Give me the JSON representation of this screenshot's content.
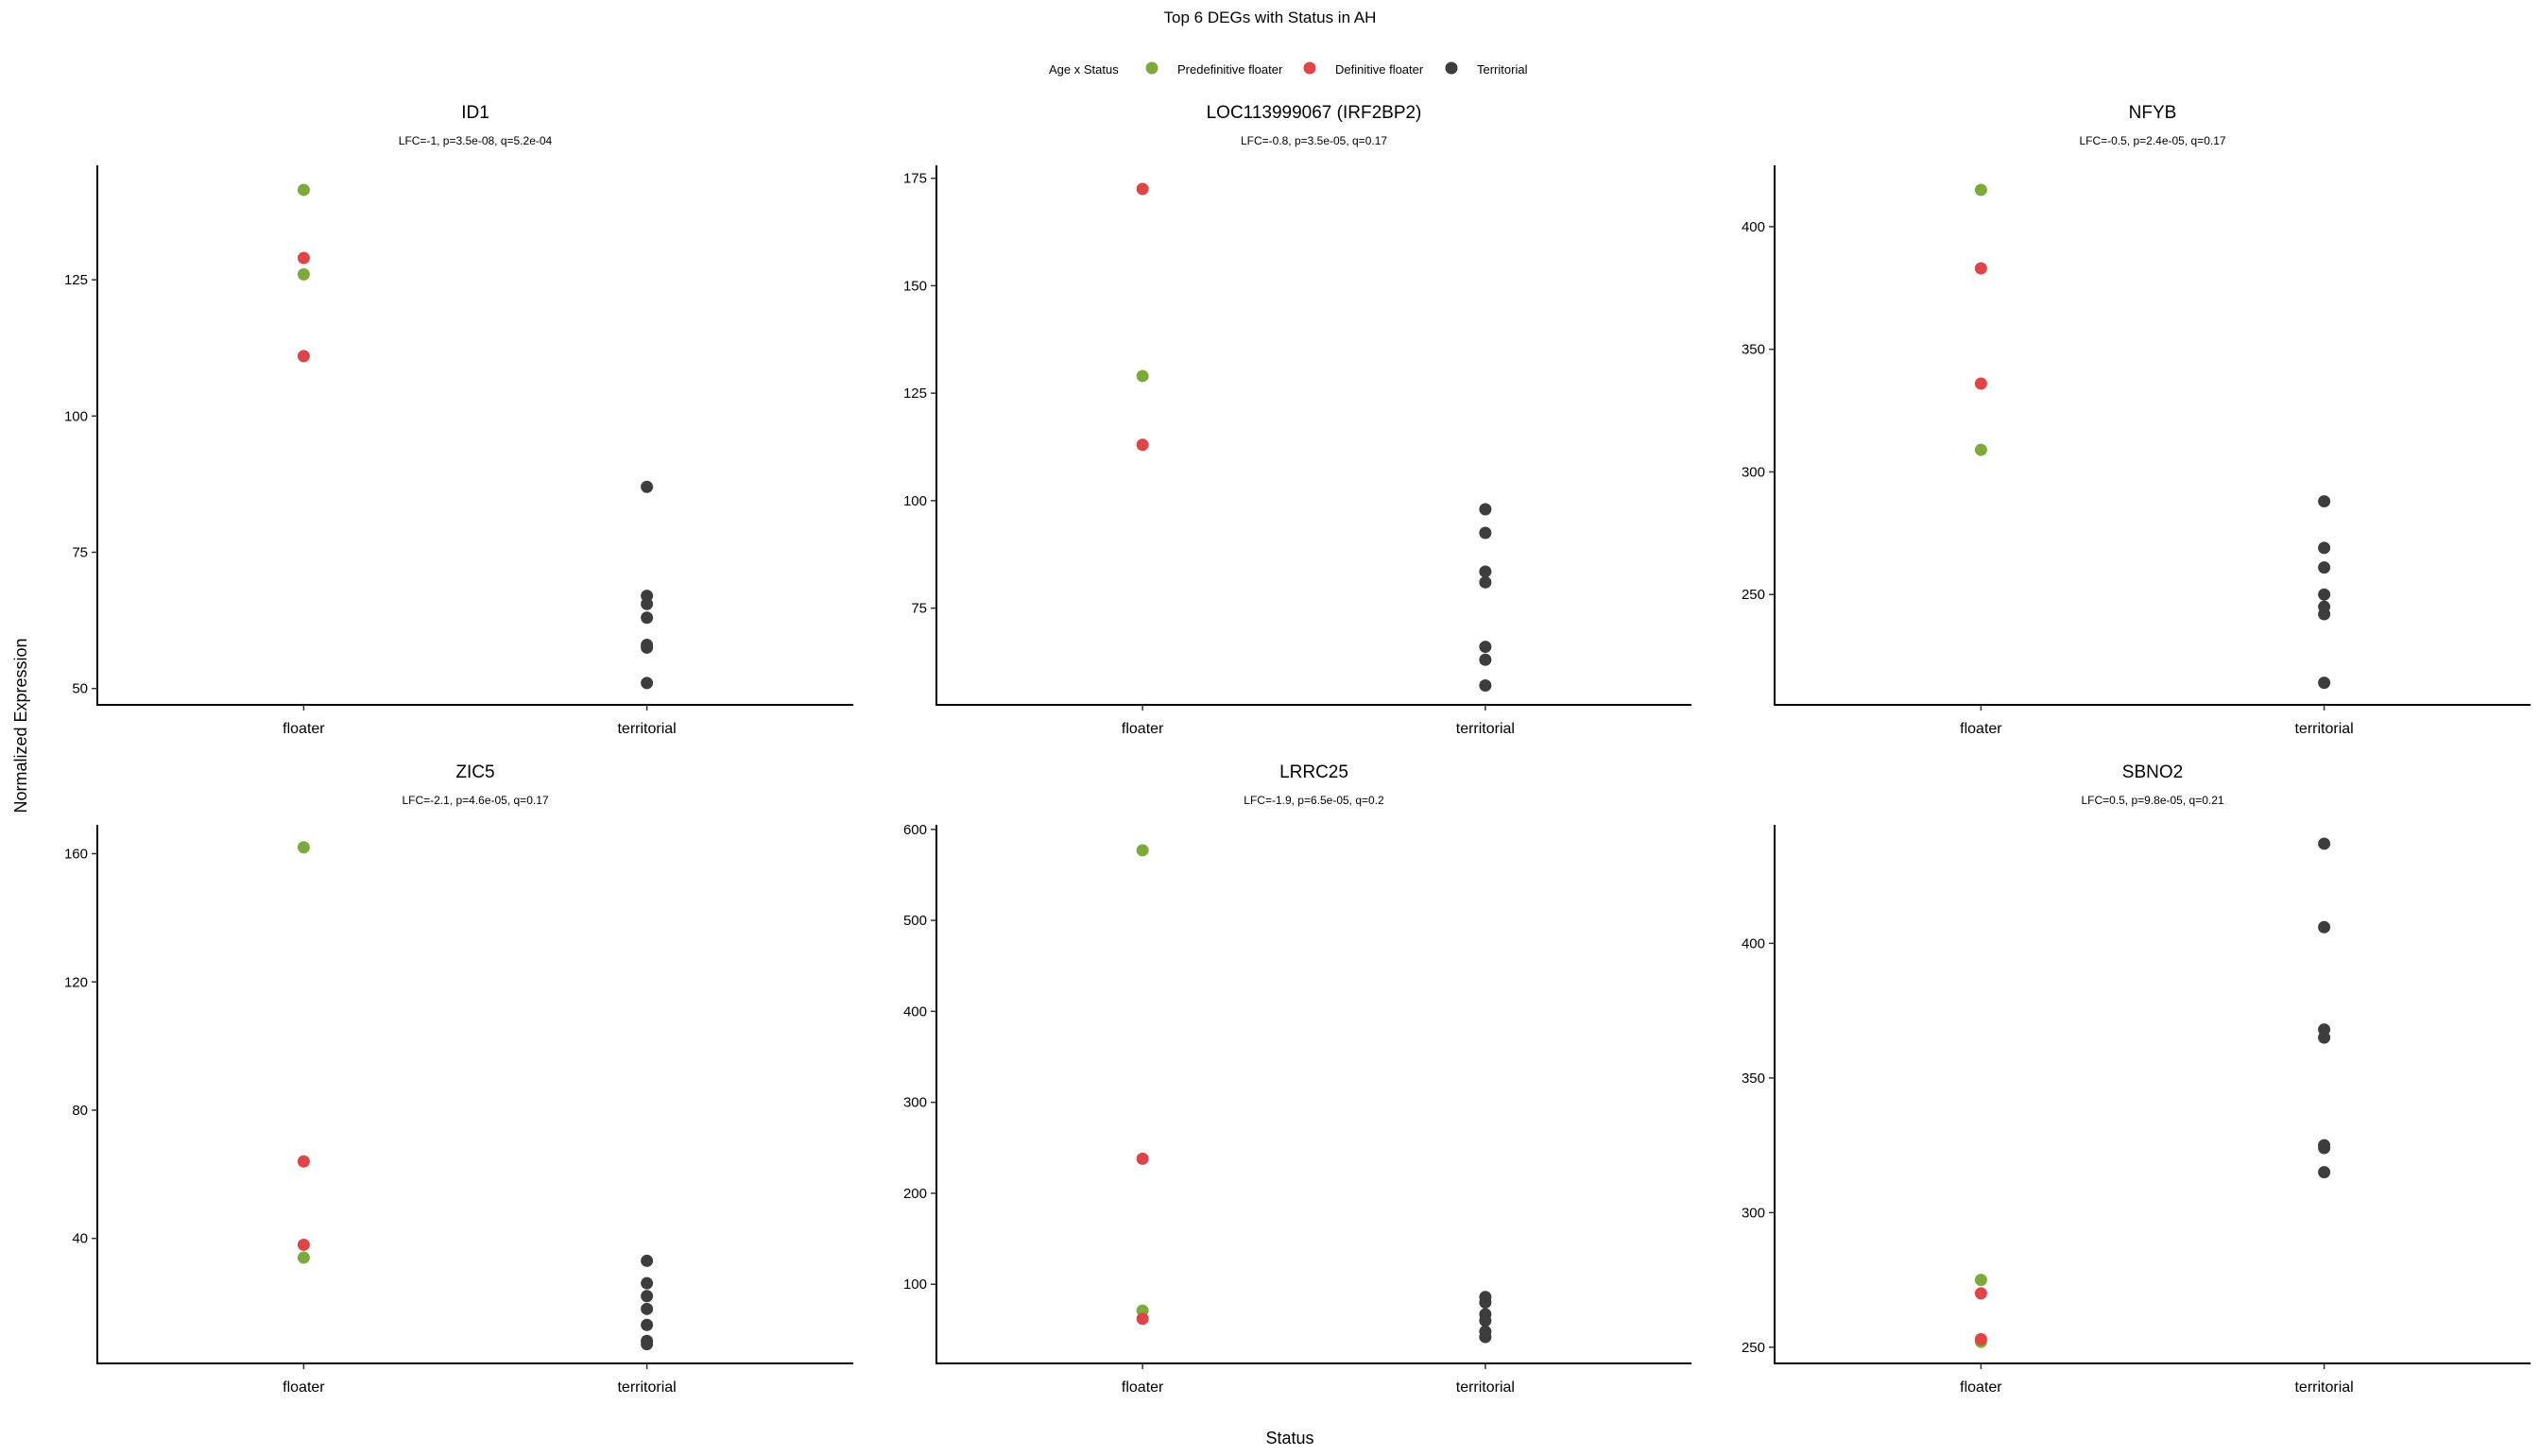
{
  "chart_data": {
    "type": "scatter",
    "title": "Top 6 DEGs with Status in AH",
    "xlabel": "Status",
    "ylabel": "Normalized Expression",
    "categories": [
      "floater",
      "territorial"
    ],
    "legend": {
      "title": "Age x Status",
      "placement": "top",
      "entries": [
        {
          "label": "Predefinitive floater",
          "color": "#7cab3c"
        },
        {
          "label": "Definitive floater",
          "color": "#e04446"
        },
        {
          "label": "Territorial",
          "color": "#3d3d3d"
        }
      ]
    },
    "grid": false,
    "panels": [
      {
        "title": "ID1",
        "subtitle": "LFC=-1, p=3.5e-08, q=5.2e-04",
        "ylim": [
          47,
          146
        ],
        "yticks": [
          50,
          75,
          100,
          125
        ],
        "points": [
          {
            "x": "floater",
            "group": "Predefinitive floater",
            "y": 141.5
          },
          {
            "x": "floater",
            "group": "Predefinitive floater",
            "y": 126
          },
          {
            "x": "floater",
            "group": "Definitive floater",
            "y": 129
          },
          {
            "x": "floater",
            "group": "Definitive floater",
            "y": 111
          },
          {
            "x": "territorial",
            "group": "Territorial",
            "y": 87
          },
          {
            "x": "territorial",
            "group": "Territorial",
            "y": 67
          },
          {
            "x": "territorial",
            "group": "Territorial",
            "y": 65.5
          },
          {
            "x": "territorial",
            "group": "Territorial",
            "y": 63
          },
          {
            "x": "territorial",
            "group": "Territorial",
            "y": 58
          },
          {
            "x": "territorial",
            "group": "Territorial",
            "y": 57.5
          },
          {
            "x": "territorial",
            "group": "Territorial",
            "y": 51
          }
        ]
      },
      {
        "title": "LOC113999067 (IRF2BP2)",
        "subtitle": "LFC=-0.8, p=3.5e-05, q=0.17",
        "ylim": [
          52.5,
          178
        ],
        "yticks": [
          75,
          100,
          125,
          150,
          175
        ],
        "points": [
          {
            "x": "floater",
            "group": "Predefinitive floater",
            "y": 129
          },
          {
            "x": "floater",
            "group": "Definitive floater",
            "y": 172.5
          },
          {
            "x": "floater",
            "group": "Definitive floater",
            "y": 113
          },
          {
            "x": "territorial",
            "group": "Territorial",
            "y": 98
          },
          {
            "x": "territorial",
            "group": "Territorial",
            "y": 92.5
          },
          {
            "x": "territorial",
            "group": "Territorial",
            "y": 83.5
          },
          {
            "x": "territorial",
            "group": "Territorial",
            "y": 81
          },
          {
            "x": "territorial",
            "group": "Territorial",
            "y": 66
          },
          {
            "x": "territorial",
            "group": "Territorial",
            "y": 63
          },
          {
            "x": "territorial",
            "group": "Territorial",
            "y": 57
          }
        ]
      },
      {
        "title": "NFYB",
        "subtitle": "LFC=-0.5, p=2.4e-05, q=0.17",
        "ylim": [
          205,
          425
        ],
        "yticks": [
          250,
          300,
          350,
          400
        ],
        "points": [
          {
            "x": "floater",
            "group": "Predefinitive floater",
            "y": 415
          },
          {
            "x": "floater",
            "group": "Predefinitive floater",
            "y": 309
          },
          {
            "x": "floater",
            "group": "Definitive floater",
            "y": 383
          },
          {
            "x": "floater",
            "group": "Definitive floater",
            "y": 336
          },
          {
            "x": "territorial",
            "group": "Territorial",
            "y": 288
          },
          {
            "x": "territorial",
            "group": "Territorial",
            "y": 269
          },
          {
            "x": "territorial",
            "group": "Territorial",
            "y": 261
          },
          {
            "x": "territorial",
            "group": "Territorial",
            "y": 250
          },
          {
            "x": "territorial",
            "group": "Territorial",
            "y": 245
          },
          {
            "x": "territorial",
            "group": "Territorial",
            "y": 242
          },
          {
            "x": "territorial",
            "group": "Territorial",
            "y": 214
          }
        ]
      },
      {
        "title": "ZIC5",
        "subtitle": "LFC=-2.1, p=4.6e-05, q=0.17",
        "ylim": [
          1,
          169
        ],
        "yticks": [
          40,
          80,
          120,
          160
        ],
        "points": [
          {
            "x": "floater",
            "group": "Predefinitive floater",
            "y": 162
          },
          {
            "x": "floater",
            "group": "Predefinitive floater",
            "y": 34
          },
          {
            "x": "floater",
            "group": "Definitive floater",
            "y": 64
          },
          {
            "x": "floater",
            "group": "Definitive floater",
            "y": 38
          },
          {
            "x": "territorial",
            "group": "Territorial",
            "y": 33
          },
          {
            "x": "territorial",
            "group": "Territorial",
            "y": 26
          },
          {
            "x": "territorial",
            "group": "Territorial",
            "y": 22
          },
          {
            "x": "territorial",
            "group": "Territorial",
            "y": 18
          },
          {
            "x": "territorial",
            "group": "Territorial",
            "y": 13
          },
          {
            "x": "territorial",
            "group": "Territorial",
            "y": 8
          },
          {
            "x": "territorial",
            "group": "Territorial",
            "y": 7
          }
        ]
      },
      {
        "title": "LRRC25",
        "subtitle": "LFC=-1.9, p=6.5e-05, q=0.2",
        "ylim": [
          13,
          605
        ],
        "yticks": [
          100,
          200,
          300,
          400,
          500,
          600
        ],
        "points": [
          {
            "x": "floater",
            "group": "Predefinitive floater",
            "y": 577
          },
          {
            "x": "floater",
            "group": "Predefinitive floater",
            "y": 71
          },
          {
            "x": "floater",
            "group": "Definitive floater",
            "y": 238
          },
          {
            "x": "floater",
            "group": "Definitive floater",
            "y": 62
          },
          {
            "x": "territorial",
            "group": "Territorial",
            "y": 86
          },
          {
            "x": "territorial",
            "group": "Territorial",
            "y": 80
          },
          {
            "x": "territorial",
            "group": "Territorial",
            "y": 67
          },
          {
            "x": "territorial",
            "group": "Territorial",
            "y": 60
          },
          {
            "x": "territorial",
            "group": "Territorial",
            "y": 48
          },
          {
            "x": "territorial",
            "group": "Territorial",
            "y": 42
          }
        ]
      },
      {
        "title": "SBNO2",
        "subtitle": "LFC=0.5, p=9.8e-05, q=0.21",
        "ylim": [
          244,
          444
        ],
        "yticks": [
          250,
          300,
          350,
          400
        ],
        "points": [
          {
            "x": "floater",
            "group": "Predefinitive floater",
            "y": 275
          },
          {
            "x": "floater",
            "group": "Predefinitive floater",
            "y": 252
          },
          {
            "x": "floater",
            "group": "Definitive floater",
            "y": 270
          },
          {
            "x": "floater",
            "group": "Definitive floater",
            "y": 253
          },
          {
            "x": "territorial",
            "group": "Territorial",
            "y": 437
          },
          {
            "x": "territorial",
            "group": "Territorial",
            "y": 406
          },
          {
            "x": "territorial",
            "group": "Territorial",
            "y": 368
          },
          {
            "x": "territorial",
            "group": "Territorial",
            "y": 365
          },
          {
            "x": "territorial",
            "group": "Territorial",
            "y": 325
          },
          {
            "x": "territorial",
            "group": "Territorial",
            "y": 324
          },
          {
            "x": "territorial",
            "group": "Territorial",
            "y": 315
          }
        ]
      }
    ]
  }
}
